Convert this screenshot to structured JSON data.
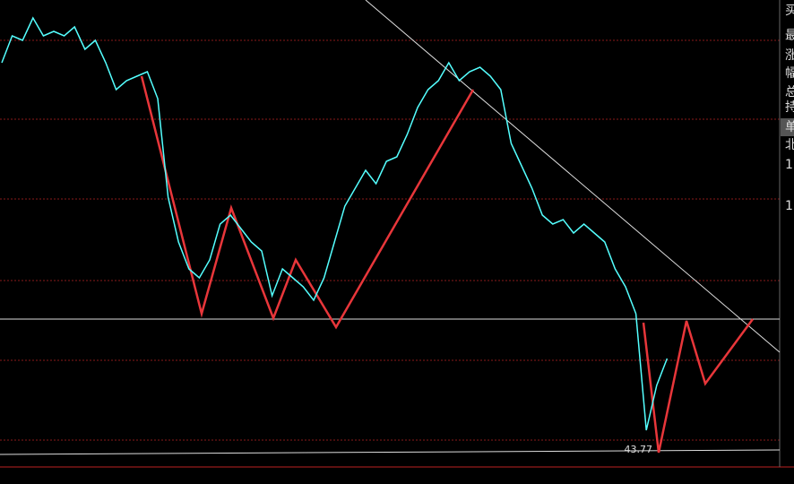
{
  "chart_data": {
    "type": "line",
    "color": "#54ffff",
    "ylim": [
      42.25,
      63.85
    ],
    "values": [
      61.05,
      62.25,
      62.05,
      63.05,
      62.25,
      62.45,
      62.25,
      62.65,
      61.65,
      62.05,
      61.05,
      59.85,
      60.25,
      60.45,
      60.65,
      59.45,
      55.05,
      53.05,
      51.85,
      51.45,
      52.25,
      53.85,
      54.25,
      53.65,
      53.05,
      52.65,
      50.65,
      51.85,
      51.45,
      51.05,
      50.45,
      51.45,
      53.05,
      54.65,
      55.45,
      56.25,
      55.65,
      56.65,
      56.85,
      57.85,
      59.05,
      59.85,
      60.25,
      61.05,
      60.25,
      60.65,
      60.85,
      60.45,
      59.85,
      57.45,
      56.45,
      55.45,
      54.25,
      53.85,
      54.05,
      53.45,
      53.85,
      53.45,
      53.05,
      51.85,
      51.05,
      49.85,
      44.65,
      46.65,
      47.85
    ],
    "annotations": [
      {
        "text": "43.77",
        "value": 43.77
      }
    ]
  },
  "sidebar": [
    "买",
    "最",
    "涨",
    "幅",
    "总",
    "持",
    "单",
    "北",
    "1",
    "1"
  ]
}
